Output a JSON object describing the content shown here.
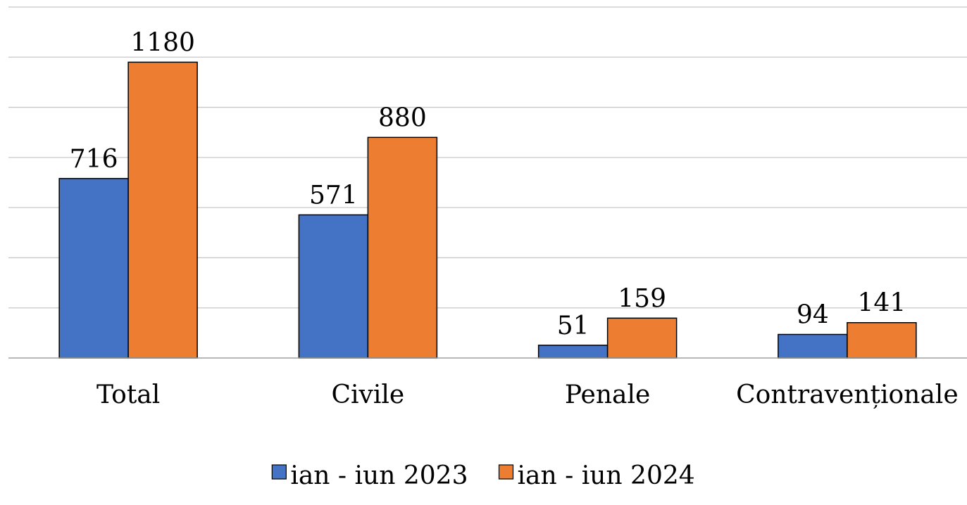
{
  "chart_data": {
    "type": "bar",
    "categories": [
      "Total",
      "Civile",
      "Penale",
      "Contravenționale"
    ],
    "series": [
      {
        "name": "ian - iun 2023",
        "values": [
          716,
          571,
          51,
          94
        ],
        "color": "#4472c4"
      },
      {
        "name": "ian - iun 2024",
        "values": [
          1180,
          880,
          159,
          141
        ],
        "color": "#ed7d31"
      }
    ],
    "ylim": [
      0,
      1400
    ],
    "y_grid_step": 200,
    "grid": true,
    "y_axis_labels_visible": false,
    "data_labels": true,
    "legend_position": "bottom"
  }
}
